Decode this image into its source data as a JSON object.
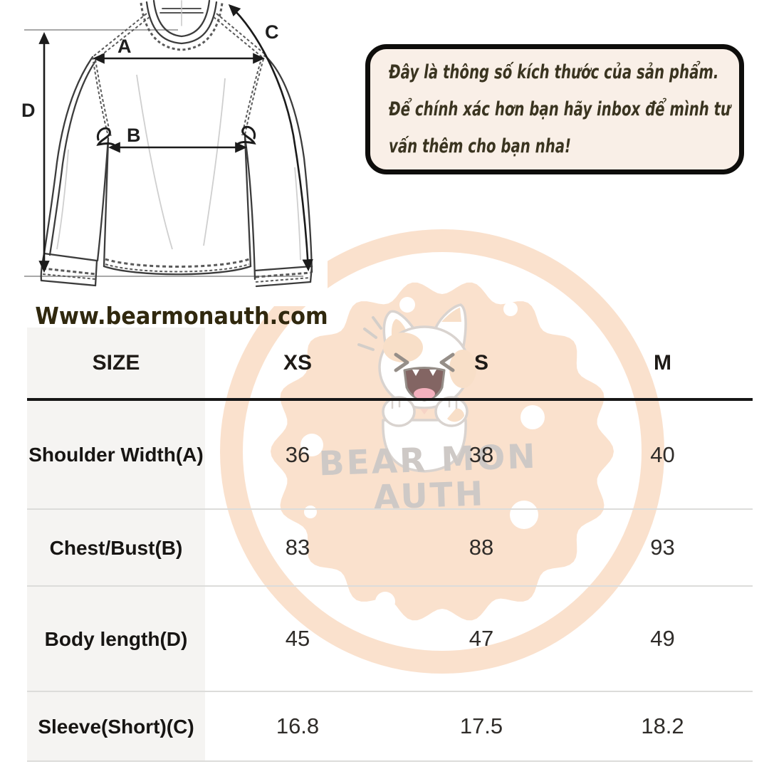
{
  "note_bubble": {
    "lines": [
      "Đây là thông số kích thước của sản phẩm.",
      "Để chính xác hơn bạn hãy inbox để mình tư",
      "vấn thêm cho bạn nha!"
    ]
  },
  "website": {
    "text": "Www.bearmonauth.com"
  },
  "watermark": {
    "brand_line1": "BEAR MON",
    "brand_line2": "AUTH"
  },
  "diagram": {
    "measure_labels": {
      "A": "A",
      "B": "B",
      "C": "C",
      "D": "D"
    }
  },
  "size_chart": {
    "type": "table",
    "columns": [
      "SIZE",
      "XS",
      "S",
      "M"
    ],
    "rows": [
      {
        "label": "Shoulder Width(A)",
        "values": [
          "36",
          "38",
          "40"
        ]
      },
      {
        "label": "Chest/Bust(B)",
        "values": [
          "83",
          "88",
          "93"
        ]
      },
      {
        "label": "Body length(D)",
        "values": [
          "45",
          "47",
          "49"
        ]
      },
      {
        "label": "Sleeve(Short)(C)",
        "values": [
          "16.8",
          "17.5",
          "18.2"
        ]
      }
    ]
  },
  "colors": {
    "peach": "#fadec8",
    "bubble_bg": "#f9efe7",
    "ink": "#30280e",
    "watermark_text": "#c9c4c0"
  }
}
